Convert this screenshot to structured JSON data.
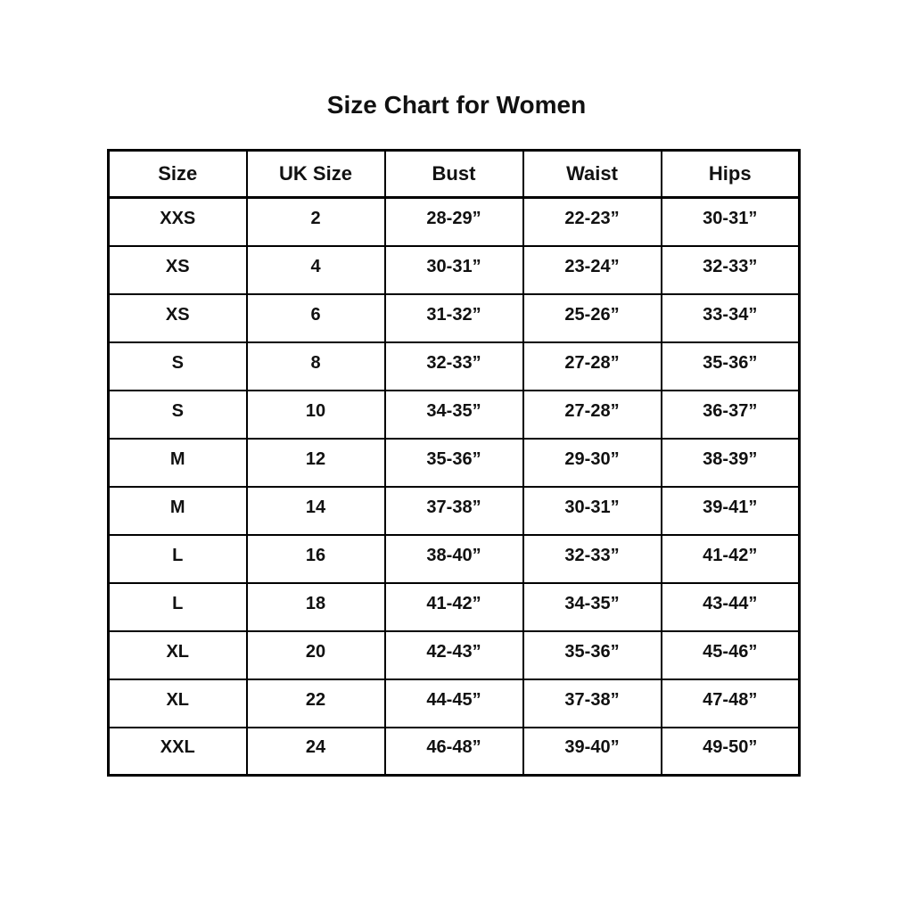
{
  "title": "Size Chart for Women",
  "chart_data": {
    "type": "table",
    "title": "Size Chart for Women",
    "columns": [
      "Size",
      "UK Size",
      "Bust",
      "Waist",
      "Hips"
    ],
    "rows": [
      [
        "XXS",
        "2",
        "28-29”",
        "22-23”",
        "30-31”"
      ],
      [
        "XS",
        "4",
        "30-31”",
        "23-24”",
        "32-33”"
      ],
      [
        "XS",
        "6",
        "31-32”",
        "25-26”",
        "33-34”"
      ],
      [
        "S",
        "8",
        "32-33”",
        "27-28”",
        "35-36”"
      ],
      [
        "S",
        "10",
        "34-35”",
        "27-28”",
        "36-37”"
      ],
      [
        "M",
        "12",
        "35-36”",
        "29-30”",
        "38-39”"
      ],
      [
        "M",
        "14",
        "37-38”",
        "30-31”",
        "39-41”"
      ],
      [
        "L",
        "16",
        "38-40”",
        "32-33”",
        "41-42”"
      ],
      [
        "L",
        "18",
        "41-42”",
        "34-35”",
        "43-44”"
      ],
      [
        "XL",
        "20",
        "42-43”",
        "35-36”",
        "45-46”"
      ],
      [
        "XL",
        "22",
        "44-45”",
        "37-38”",
        "47-48”"
      ],
      [
        "XXL",
        "24",
        "46-48”",
        "39-40”",
        "49-50”"
      ]
    ],
    "layout": {
      "grid": true,
      "border_color": "#000000",
      "background": "#ffffff",
      "text_color": "#111111"
    }
  }
}
